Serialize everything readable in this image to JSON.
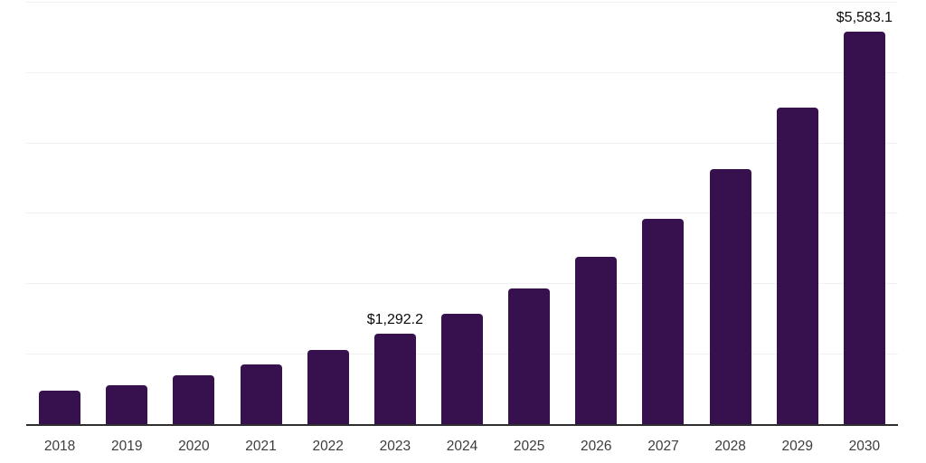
{
  "chart_data": {
    "type": "bar",
    "title": "",
    "xlabel": "",
    "ylabel": "",
    "categories": [
      "2018",
      "2019",
      "2020",
      "2021",
      "2022",
      "2023",
      "2024",
      "2025",
      "2026",
      "2027",
      "2028",
      "2029",
      "2030"
    ],
    "values": [
      470,
      555,
      700,
      855,
      1060,
      1292.2,
      1575,
      1935,
      2380,
      2925,
      3625,
      4500,
      5583.1
    ],
    "data_labels": [
      {
        "index": 5,
        "text": "$1,292.2"
      },
      {
        "index": 12,
        "text": "$5,583.1"
      }
    ],
    "ylim": [
      0,
      6000
    ],
    "grid": {
      "visible": true,
      "step": 1000
    },
    "legend_position": "none",
    "colors": {
      "bar": "#36114E",
      "gridline": "#f1f1f1",
      "axis_line": "#2e2e2e",
      "tick_label": "#3d3d3d",
      "data_label": "#0a0a0a",
      "background": "#ffffff"
    }
  }
}
